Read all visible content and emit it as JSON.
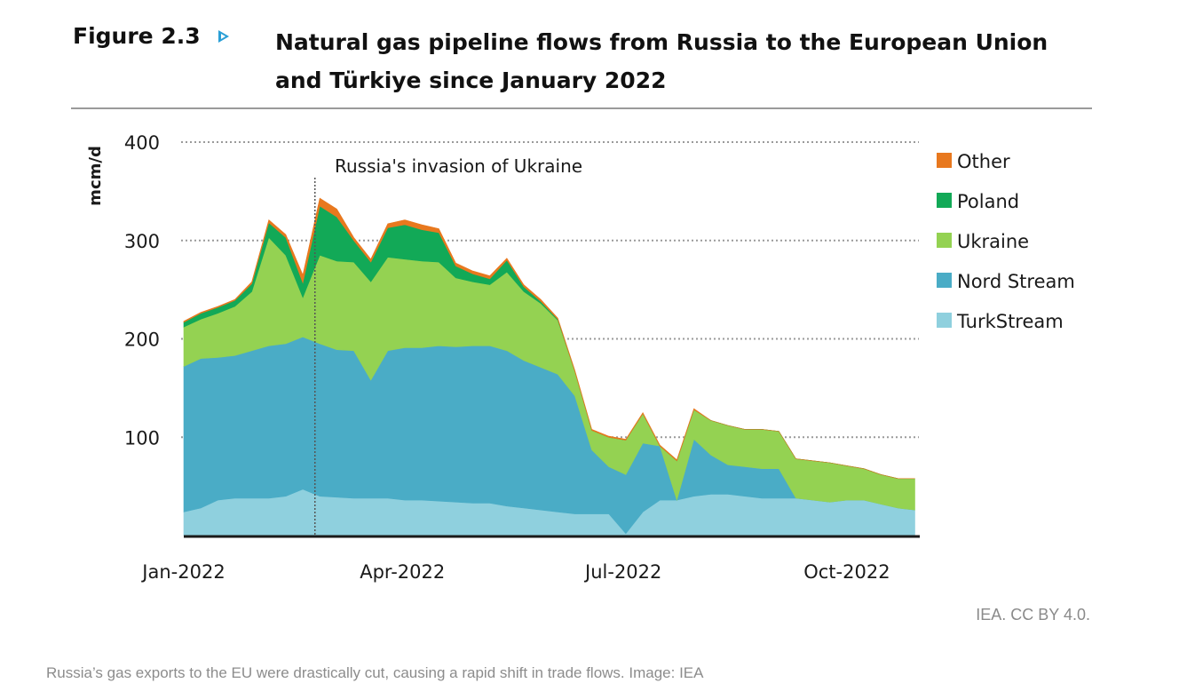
{
  "figure": {
    "label": "Figure 2.3",
    "title": "Natural gas pipeline flows from Russia to the European Union and Türkiye since January 2022"
  },
  "credit": "IEA. CC BY 4.0.",
  "caption": "Russia’s gas exports to the EU were drastically cut, causing a rapid shift in trade flows. Image: IEA",
  "chart_data": {
    "type": "area",
    "stacked": true,
    "title": "",
    "xlabel": "",
    "ylabel": "mcm/d",
    "ylim": [
      0,
      400
    ],
    "xlim": [
      "2022-01-01",
      "2022-10-31"
    ],
    "y_ticks": [
      100,
      200,
      300,
      400
    ],
    "x_ticks": [
      {
        "label": "Jan-2022",
        "date": "2022-01-01"
      },
      {
        "label": "Apr-2022",
        "date": "2022-04-01"
      },
      {
        "label": "Jul-2022",
        "date": "2022-07-01"
      },
      {
        "label": "Oct-2022",
        "date": "2022-10-01"
      }
    ],
    "grid": "horizontal dotted",
    "legend_position": "right",
    "annotation": {
      "text": "Russia's invasion of Ukraine",
      "date": "2022-02-24"
    },
    "x": [
      "2022-01-01",
      "2022-01-08",
      "2022-01-15",
      "2022-01-22",
      "2022-01-29",
      "2022-02-05",
      "2022-02-12",
      "2022-02-19",
      "2022-02-26",
      "2022-03-05",
      "2022-03-12",
      "2022-03-19",
      "2022-03-26",
      "2022-04-02",
      "2022-04-09",
      "2022-04-16",
      "2022-04-23",
      "2022-04-30",
      "2022-05-07",
      "2022-05-14",
      "2022-05-21",
      "2022-05-28",
      "2022-06-04",
      "2022-06-11",
      "2022-06-18",
      "2022-06-25",
      "2022-07-02",
      "2022-07-09",
      "2022-07-16",
      "2022-07-23",
      "2022-07-30",
      "2022-08-06",
      "2022-08-13",
      "2022-08-20",
      "2022-08-27",
      "2022-09-03",
      "2022-09-10",
      "2022-09-17",
      "2022-09-24",
      "2022-10-01",
      "2022-10-08",
      "2022-10-15",
      "2022-10-22",
      "2022-10-29"
    ],
    "series": [
      {
        "name": "TurkStream",
        "color": "#8fd0de",
        "values": [
          24,
          28,
          36,
          38,
          38,
          38,
          40,
          47,
          40,
          39,
          38,
          38,
          38,
          36,
          36,
          35,
          34,
          33,
          33,
          30,
          28,
          26,
          24,
          22,
          22,
          22,
          2,
          24,
          36,
          36,
          40,
          42,
          42,
          40,
          38,
          38,
          38,
          36,
          34,
          36,
          36,
          32,
          28,
          26
        ]
      },
      {
        "name": "Nord Stream",
        "color": "#4aacc6",
        "values": [
          148,
          152,
          145,
          145,
          150,
          155,
          155,
          155,
          155,
          150,
          150,
          120,
          150,
          155,
          155,
          158,
          158,
          160,
          160,
          158,
          150,
          145,
          140,
          120,
          65,
          48,
          60,
          70,
          55,
          0,
          58,
          40,
          30,
          30,
          30,
          30,
          0,
          0,
          0,
          0,
          0,
          0,
          0,
          0
        ]
      },
      {
        "name": "Ukraine",
        "color": "#94d252",
        "values": [
          40,
          40,
          45,
          50,
          60,
          110,
          90,
          40,
          90,
          90,
          90,
          100,
          95,
          90,
          88,
          85,
          70,
          65,
          62,
          80,
          70,
          65,
          55,
          25,
          20,
          30,
          35,
          30,
          0,
          40,
          30,
          35,
          40,
          38,
          40,
          38,
          40,
          40,
          40,
          35,
          32,
          30,
          30,
          32
        ]
      },
      {
        "name": "Poland",
        "color": "#12a957",
        "values": [
          5,
          6,
          6,
          6,
          8,
          15,
          18,
          15,
          50,
          45,
          22,
          20,
          30,
          35,
          32,
          30,
          12,
          8,
          6,
          12,
          5,
          2,
          1,
          0,
          0,
          0,
          0,
          0,
          0,
          0,
          0,
          0,
          0,
          0,
          0,
          0,
          0,
          0,
          0,
          0,
          0,
          0,
          0,
          0
        ]
      },
      {
        "name": "Other",
        "color": "#e8781e",
        "values": [
          1,
          1,
          1,
          1,
          2,
          3,
          3,
          8,
          8,
          8,
          3,
          3,
          4,
          5,
          5,
          4,
          3,
          3,
          3,
          2,
          2,
          2,
          1,
          1,
          1,
          1,
          1,
          1,
          1,
          1,
          1,
          0,
          0,
          0,
          0,
          0,
          0,
          0,
          0,
          0,
          0,
          0,
          0,
          0
        ]
      }
    ]
  }
}
